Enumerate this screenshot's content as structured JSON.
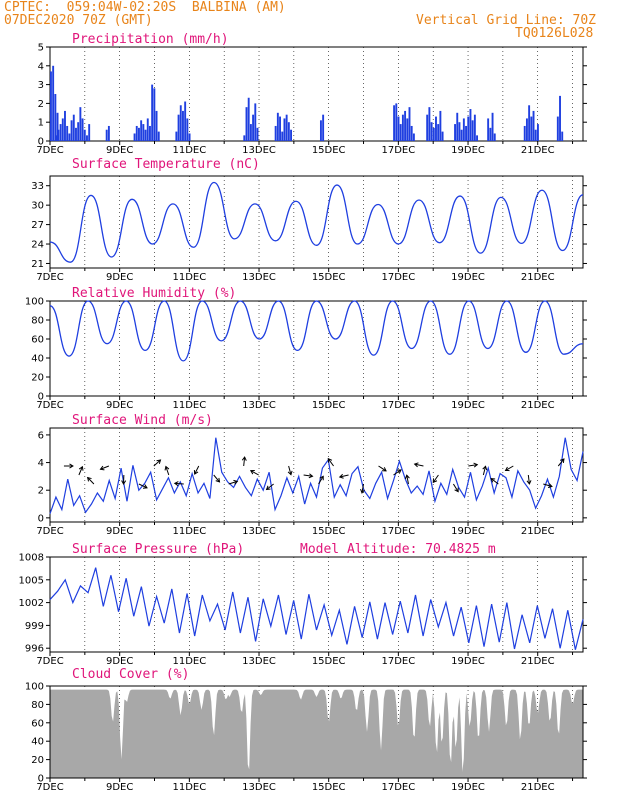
{
  "header": {
    "line1": "CPTEC:  059:04W-02:20S  BALBINA (AM)",
    "line2_left": "07DEC2020 70Z (GMT)",
    "line2_right": "Vertical Grid Line: 70Z",
    "line3_right": "TQ0126L028"
  },
  "colors": {
    "header": "#e8841a",
    "title": "#e0157a",
    "series": "#1f3fe0",
    "cloud": "#a8a8a8"
  },
  "chart_data": [
    {
      "type": "bar",
      "title": "Precipitation (mm/h)",
      "ylim": [
        0,
        5
      ],
      "yticks": [
        "0",
        "1",
        "2",
        "3",
        "4",
        "5"
      ],
      "xtick_labels": [
        "7DEC",
        "9DEC",
        "11DEC",
        "13DEC",
        "15DEC",
        "17DEC",
        "19DEC",
        "21DEC"
      ],
      "x_range_days": [
        7,
        22.3
      ],
      "events": [
        {
          "x": 7.0,
          "values": [
            3.7,
            4.0,
            2.5,
            1.5
          ]
        },
        {
          "x": 7.15,
          "values": [
            0.3,
            0.6,
            0.9,
            1.2,
            1.6,
            0.8,
            0.4,
            1.1,
            1.4,
            0.7,
            1.0,
            1.8,
            1.2,
            0.6,
            0.3,
            0.9
          ]
        },
        {
          "x": 8.6,
          "values": [
            0.6,
            0.8
          ]
        },
        {
          "x": 9.4,
          "values": [
            0.4,
            0.8,
            0.7,
            1.1,
            0.9,
            0.6,
            1.2,
            0.8,
            3.0,
            2.8,
            1.6,
            0.5
          ]
        },
        {
          "x": 10.6,
          "values": [
            0.5,
            1.4,
            1.9,
            1.6,
            2.1,
            1.2,
            0.4
          ]
        },
        {
          "x": 12.55,
          "values": [
            0.3,
            1.8,
            2.3,
            0.9,
            1.4,
            2.0,
            0.7
          ]
        },
        {
          "x": 13.45,
          "values": [
            0.8,
            1.5,
            1.3,
            0.5,
            1.2,
            1.4,
            1.0,
            0.6
          ]
        },
        {
          "x": 14.75,
          "values": [
            1.1,
            1.4
          ]
        },
        {
          "x": 16.85,
          "values": [
            1.9,
            2.0,
            1.3,
            0.9,
            1.4,
            1.6,
            1.2,
            1.8,
            0.8,
            0.4
          ]
        },
        {
          "x": 17.8,
          "values": [
            1.4,
            1.8,
            1.0,
            0.7,
            1.3,
            0.9,
            1.6,
            0.5
          ]
        },
        {
          "x": 18.6,
          "values": [
            0.9,
            1.5,
            1.0,
            0.6,
            1.2,
            0.8,
            1.3,
            1.7,
            1.1,
            1.4,
            0.3
          ]
        },
        {
          "x": 19.55,
          "values": [
            1.2,
            0.7,
            1.5,
            0.4
          ]
        },
        {
          "x": 20.6,
          "values": [
            0.8,
            1.2,
            1.9,
            1.3,
            1.6,
            0.6,
            0.9
          ]
        },
        {
          "x": 21.55,
          "values": [
            1.3,
            2.4,
            0.5
          ]
        }
      ]
    },
    {
      "type": "line",
      "title": "Surface Temperature (nC)",
      "ylim": [
        20.3,
        34.5
      ],
      "yticks": [
        "21",
        "24",
        "27",
        "30",
        "33"
      ],
      "xtick_labels": [
        "7DEC",
        "9DEC",
        "11DEC",
        "13DEC",
        "15DEC",
        "17DEC",
        "19DEC",
        "21DEC"
      ],
      "peaks": [
        31.5,
        30.9,
        30.2,
        33.5,
        30.2,
        30.6,
        33.1,
        30.1,
        30.8,
        31.4,
        31.2,
        32.3
      ],
      "troughs": [
        21.2,
        22.0,
        24.0,
        23.5,
        24.8,
        24.5,
        23.8,
        24.0,
        24.0,
        24.2,
        22.6,
        24.1,
        23.0
      ],
      "start": 24.3,
      "end": 31.6
    },
    {
      "type": "line",
      "title": "Relative Humidity (%)",
      "ylim": [
        0,
        100
      ],
      "yticks": [
        "0",
        "20",
        "40",
        "60",
        "80",
        "100"
      ],
      "xtick_labels": [
        "7DEC",
        "9DEC",
        "11DEC",
        "13DEC",
        "15DEC",
        "17DEC",
        "19DEC",
        "21DEC"
      ],
      "peaks": [
        100,
        100,
        100,
        100,
        100,
        100,
        100,
        100,
        100,
        100,
        100,
        100,
        100
      ],
      "troughs": [
        42,
        55,
        48,
        37,
        58,
        60,
        48,
        60,
        43,
        50,
        44,
        50,
        46,
        44
      ],
      "start": 95,
      "end": 55
    },
    {
      "type": "line",
      "title": "Surface Wind (m/s)",
      "ylim": [
        -0.3,
        6.5
      ],
      "yticks": [
        "0",
        "2",
        "4",
        "6"
      ],
      "xtick_labels": [
        "7DEC",
        "9DEC",
        "11DEC",
        "13DEC",
        "15DEC",
        "17DEC",
        "19DEC",
        "21DEC"
      ],
      "values": [
        0.3,
        1.5,
        0.6,
        2.8,
        0.9,
        1.6,
        0.4,
        1.0,
        1.8,
        1.2,
        2.7,
        1.4,
        3.6,
        1.2,
        3.8,
        2.0,
        2.5,
        3.3,
        1.3,
        2.1,
        2.9,
        1.8,
        2.6,
        1.6,
        3.2,
        1.8,
        2.5,
        1.4,
        5.8,
        3.3,
        2.6,
        2.2,
        3.0,
        2.2,
        1.6,
        2.8,
        2.0,
        3.3,
        0.6,
        1.6,
        2.9,
        1.8,
        3.0,
        1.0,
        2.5,
        1.5,
        3.6,
        4.2,
        1.5,
        2.4,
        1.6,
        3.2,
        3.7,
        2.0,
        1.4,
        2.5,
        3.3,
        1.4,
        2.7,
        4.1,
        2.8,
        1.8,
        2.3,
        1.7,
        3.4,
        1.2,
        2.5,
        1.7,
        3.5,
        2.2,
        1.5,
        3.3,
        1.3,
        2.3,
        3.6,
        1.8,
        3.2,
        2.9,
        1.5,
        3.4,
        2.6,
        2.0,
        0.7,
        1.6,
        2.8,
        1.5,
        3.0,
        5.8,
        3.5,
        2.7,
        4.8
      ]
    },
    {
      "type": "line",
      "title": "Surface Pressure (hPa)",
      "annotation": "Model Altitude: 70.4825 m",
      "ylim": [
        995.5,
        1008
      ],
      "yticks": [
        "996",
        "999",
        "1002",
        "1005",
        "1008"
      ],
      "xtick_labels": [
        "7DEC",
        "9DEC",
        "11DEC",
        "13DEC",
        "15DEC",
        "17DEC",
        "19DEC",
        "21DEC"
      ],
      "values": [
        1002.4,
        1003.5,
        1005.0,
        1002.0,
        1004.2,
        1003.3,
        1006.6,
        1001.5,
        1005.6,
        1000.8,
        1005.2,
        1000.2,
        1004.1,
        998.9,
        1002.8,
        999.3,
        1003.8,
        998.0,
        1003.2,
        997.6,
        1003.0,
        999.6,
        1001.8,
        998.4,
        1003.4,
        998.0,
        1002.7,
        996.9,
        1002.5,
        998.9,
        1003.0,
        997.8,
        1002.3,
        997.2,
        1003.1,
        998.4,
        1001.7,
        997.7,
        1001.0,
        996.5,
        1001.5,
        997.4,
        1002.1,
        997.2,
        1002.0,
        997.8,
        1002.2,
        998.0,
        1003.0,
        997.6,
        1002.4,
        998.8,
        1002.0,
        997.6,
        1001.4,
        996.7,
        1001.6,
        996.2,
        1001.8,
        996.8,
        1002.0,
        995.9,
        1000.4,
        996.7,
        1001.6,
        997.3,
        1001.2,
        996.0,
        1001.0,
        995.8,
        999.8
      ]
    },
    {
      "type": "area",
      "title": "Cloud Cover (%)",
      "ylim": [
        0,
        100
      ],
      "yticks": [
        "0",
        "20",
        "40",
        "60",
        "80",
        "100"
      ],
      "xtick_labels": [
        "7DEC",
        "9DEC",
        "11DEC",
        "13DEC",
        "15DEC",
        "17DEC",
        "19DEC",
        "21DEC"
      ],
      "baseline": 96,
      "dips": [
        {
          "x": 8.8,
          "v": 60
        },
        {
          "x": 9.05,
          "v": 20
        },
        {
          "x": 9.2,
          "v": 82
        },
        {
          "x": 10.45,
          "v": 86
        },
        {
          "x": 10.75,
          "v": 68
        },
        {
          "x": 11.0,
          "v": 80
        },
        {
          "x": 11.35,
          "v": 74
        },
        {
          "x": 11.7,
          "v": 45
        },
        {
          "x": 12.05,
          "v": 85
        },
        {
          "x": 12.15,
          "v": 88
        },
        {
          "x": 12.5,
          "v": 70
        },
        {
          "x": 12.7,
          "v": 2
        },
        {
          "x": 13.05,
          "v": 90
        },
        {
          "x": 14.2,
          "v": 85
        },
        {
          "x": 14.65,
          "v": 88
        },
        {
          "x": 15.0,
          "v": 60
        },
        {
          "x": 15.35,
          "v": 86
        },
        {
          "x": 15.8,
          "v": 72
        },
        {
          "x": 16.1,
          "v": 50
        },
        {
          "x": 16.5,
          "v": 30
        },
        {
          "x": 17.0,
          "v": 55
        },
        {
          "x": 17.45,
          "v": 40
        },
        {
          "x": 17.9,
          "v": 55
        },
        {
          "x": 18.1,
          "v": 25
        },
        {
          "x": 18.25,
          "v": 35
        },
        {
          "x": 18.5,
          "v": 12
        },
        {
          "x": 18.65,
          "v": 30
        },
        {
          "x": 18.85,
          "v": 3
        },
        {
          "x": 19.05,
          "v": 55
        },
        {
          "x": 19.3,
          "v": 40
        },
        {
          "x": 19.6,
          "v": 50
        },
        {
          "x": 20.1,
          "v": 55
        },
        {
          "x": 20.5,
          "v": 40
        },
        {
          "x": 20.75,
          "v": 55
        },
        {
          "x": 21.0,
          "v": 70
        },
        {
          "x": 21.35,
          "v": 60
        },
        {
          "x": 21.6,
          "v": 45
        },
        {
          "x": 22.0,
          "v": 80
        }
      ]
    }
  ]
}
